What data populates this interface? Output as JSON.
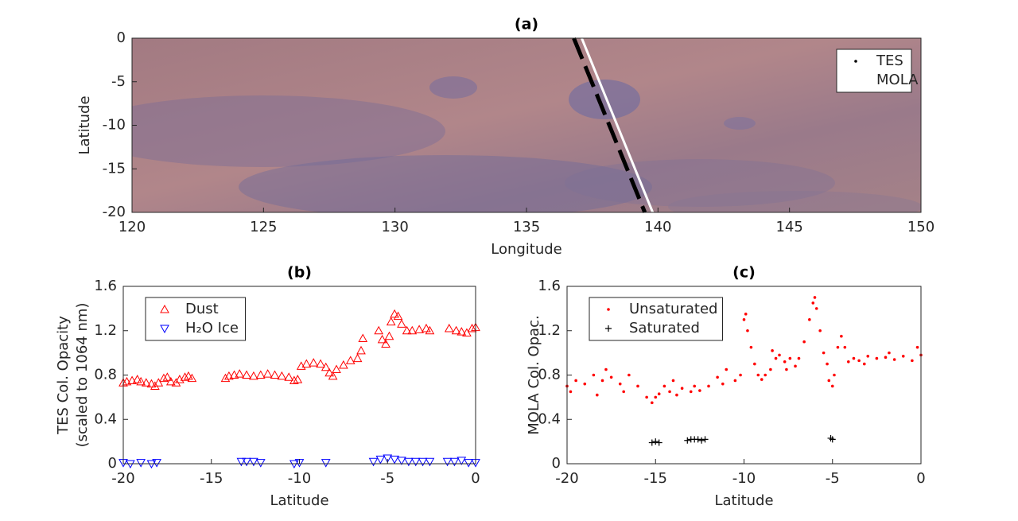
{
  "chart_data": [
    {
      "type": "line",
      "title": "(a)",
      "xlabel": "Longitude",
      "ylabel": [
        "Latitude"
      ],
      "xlim": [
        120,
        150
      ],
      "ylim": [
        -20,
        0
      ],
      "xticks": [
        120,
        125,
        130,
        135,
        140,
        145,
        150
      ],
      "yticks": [
        0,
        -5,
        -10,
        -15,
        -20
      ],
      "legend": "upper right",
      "series": [
        {
          "name": "TES",
          "color": "#000000",
          "linestyle": "dashed",
          "x": [
            136.8,
            139.5
          ],
          "values": [
            0,
            -20
          ]
        },
        {
          "name": "MOLA",
          "color": "#ffffff",
          "linestyle": "solid",
          "x": [
            137.1,
            139.8
          ],
          "values": [
            0,
            -20
          ]
        }
      ]
    },
    {
      "type": "scatter",
      "title": "(b)",
      "xlabel": "Latitude",
      "ylabel": [
        "TES Col. Opacity",
        "(scaled to 1064 nm)"
      ],
      "xlim": [
        -20,
        0
      ],
      "ylim": [
        0,
        1.6
      ],
      "xticks": [
        -20,
        -15,
        -10,
        -5,
        0
      ],
      "yticks": [
        0,
        0.4,
        0.8,
        1.2,
        1.6
      ],
      "legend": "upper left",
      "series": [
        {
          "name": "Dust",
          "color": "#ff0000",
          "marker": "triangle-up",
          "x": [
            -20,
            -19.8,
            -19.5,
            -19.2,
            -19,
            -18.7,
            -18.4,
            -18.2,
            -18,
            -17.7,
            -17.5,
            -17.3,
            -17,
            -16.8,
            -16.5,
            -16.3,
            -16.1,
            -14.2,
            -14,
            -13.7,
            -13.4,
            -13,
            -12.6,
            -12.2,
            -11.8,
            -11.4,
            -11,
            -10.6,
            -10.3,
            -10.1,
            -9.9,
            -9.6,
            -9.2,
            -8.8,
            -8.5,
            -8.3,
            -8.1,
            -7.9,
            -7.5,
            -7.1,
            -6.7,
            -6.5,
            -6.4,
            -5.5,
            -5.3,
            -5.1,
            -4.9,
            -4.8,
            -4.6,
            -4.4,
            -4.2,
            -3.9,
            -3.6,
            -3.2,
            -2.8,
            -2.6,
            -1.5,
            -1.1,
            -0.8,
            -0.5,
            -0.2,
            0
          ],
          "values": [
            0.73,
            0.74,
            0.75,
            0.76,
            0.74,
            0.73,
            0.72,
            0.7,
            0.73,
            0.77,
            0.78,
            0.74,
            0.73,
            0.76,
            0.78,
            0.79,
            0.77,
            0.77,
            0.79,
            0.8,
            0.81,
            0.8,
            0.79,
            0.8,
            0.81,
            0.8,
            0.79,
            0.78,
            0.75,
            0.76,
            0.88,
            0.9,
            0.91,
            0.9,
            0.87,
            0.82,
            0.79,
            0.85,
            0.89,
            0.93,
            0.95,
            1.02,
            1.13,
            1.2,
            1.12,
            1.08,
            1.15,
            1.28,
            1.35,
            1.33,
            1.26,
            1.2,
            1.2,
            1.21,
            1.22,
            1.2,
            1.22,
            1.2,
            1.19,
            1.18,
            1.22,
            1.23
          ]
        },
        {
          "name": "H₂O Ice",
          "color": "#0000ff",
          "marker": "triangle-down",
          "x": [
            -20,
            -19.6,
            -19,
            -18.4,
            -18.1,
            -13.3,
            -13,
            -12.6,
            -12.2,
            -10.3,
            -10,
            -8.5,
            -5.8,
            -5.4,
            -5,
            -4.6,
            -4.2,
            -3.8,
            -3.4,
            -3,
            -2.6,
            -1.6,
            -1.2,
            -0.8,
            -0.4,
            0
          ],
          "values": [
            0.01,
            0,
            0.01,
            0,
            0.01,
            0.02,
            0.02,
            0.02,
            0.01,
            0,
            0.01,
            0.01,
            0.02,
            0.04,
            0.05,
            0.04,
            0.03,
            0.02,
            0.02,
            0.02,
            0.02,
            0.02,
            0.02,
            0.03,
            0.01,
            0.01
          ]
        }
      ]
    },
    {
      "type": "scatter",
      "title": "(c)",
      "xlabel": "Latitude",
      "ylabel": [
        "MOLA Col. Opac."
      ],
      "xlim": [
        -20,
        0
      ],
      "ylim": [
        0,
        1.6
      ],
      "xticks": [
        -20,
        -15,
        -10,
        -5,
        0
      ],
      "yticks": [
        0,
        0.4,
        0.8,
        1.2,
        1.6
      ],
      "legend": "upper left",
      "series": [
        {
          "name": "Unsaturated",
          "color": "#ff0000",
          "marker": "dot",
          "x": [
            -20,
            -19.8,
            -19.5,
            -19,
            -18.5,
            -18.3,
            -18,
            -17.8,
            -17.5,
            -17,
            -16.8,
            -16.5,
            -16,
            -15.5,
            -15.2,
            -15,
            -14.8,
            -14.5,
            -14.2,
            -14,
            -13.8,
            -13.5,
            -13,
            -12.8,
            -12.5,
            -12,
            -11.5,
            -11.2,
            -11,
            -10.5,
            -10.2,
            -10,
            -9.9,
            -9.8,
            -9.6,
            -9.4,
            -9.2,
            -9,
            -8.8,
            -8.5,
            -8.4,
            -8.2,
            -8,
            -7.7,
            -7.6,
            -7.4,
            -7.1,
            -6.9,
            -6.6,
            -6.3,
            -6.1,
            -6,
            -5.9,
            -5.7,
            -5.5,
            -5.3,
            -5.2,
            -5,
            -4.9,
            -4.7,
            -4.5,
            -4.3,
            -4.1,
            -3.8,
            -3.5,
            -3.2,
            -3,
            -2.5,
            -2,
            -1.8,
            -1.5,
            -1,
            -0.5,
            -0.2,
            0
          ],
          "values": [
            0.7,
            0.65,
            0.75,
            0.72,
            0.8,
            0.62,
            0.75,
            0.85,
            0.78,
            0.72,
            0.65,
            0.8,
            0.7,
            0.6,
            0.55,
            0.6,
            0.63,
            0.7,
            0.65,
            0.75,
            0.62,
            0.68,
            0.65,
            0.7,
            0.66,
            0.7,
            0.78,
            0.72,
            0.85,
            0.75,
            0.8,
            1.3,
            1.35,
            1.2,
            1.05,
            0.9,
            0.8,
            0.76,
            0.8,
            0.85,
            1.02,
            0.95,
            0.98,
            0.92,
            0.85,
            0.95,
            0.88,
            0.95,
            1.1,
            1.3,
            1.45,
            1.5,
            1.4,
            1.2,
            1.0,
            0.9,
            0.75,
            0.7,
            0.8,
            1.05,
            1.15,
            1.05,
            0.92,
            0.95,
            0.93,
            0.9,
            0.97,
            0.95,
            0.96,
            1.0,
            0.94,
            0.97,
            0.93,
            1.05,
            0.98
          ]
        },
        {
          "name": "Saturated",
          "color": "#000000",
          "marker": "plus",
          "x": [
            -15.2,
            -15,
            -14.8,
            -13.2,
            -13,
            -12.8,
            -12.6,
            -12.4,
            -12.2,
            -5.1,
            -5
          ],
          "values": [
            0.19,
            0.2,
            0.19,
            0.21,
            0.22,
            0.22,
            0.22,
            0.21,
            0.22,
            0.23,
            0.22
          ]
        }
      ]
    }
  ]
}
